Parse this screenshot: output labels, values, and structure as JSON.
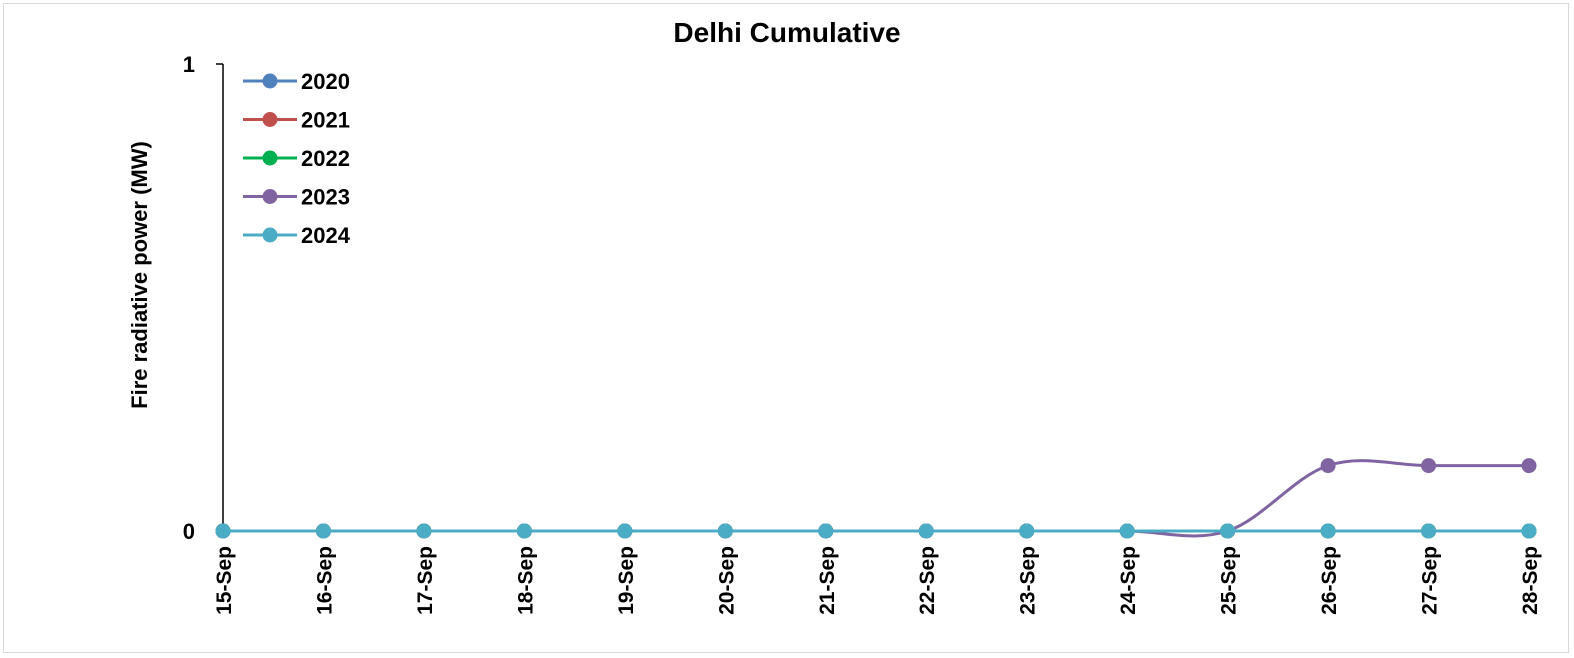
{
  "chart_data": {
    "type": "line",
    "title": "Delhi Cumulative",
    "xlabel": "",
    "ylabel": "Fire radiative power (MW)",
    "ylim": [
      0,
      1
    ],
    "yticks": [
      "0",
      "1"
    ],
    "categories": [
      "15-Sep",
      "16-Sep",
      "17-Sep",
      "18-Sep",
      "19-Sep",
      "20-Sep",
      "21-Sep",
      "22-Sep",
      "23-Sep",
      "24-Sep",
      "25-Sep",
      "26-Sep",
      "27-Sep",
      "28-Sep"
    ],
    "legend_position": "top-left",
    "grid": false,
    "series": [
      {
        "name": "2020",
        "color": "#4f81bd",
        "values": [
          0,
          0,
          0,
          0,
          0,
          0,
          0,
          0,
          0,
          0,
          0,
          0,
          0,
          0
        ]
      },
      {
        "name": "2021",
        "color": "#c0504d",
        "values": [
          0,
          0,
          0,
          0,
          0,
          0,
          0,
          0,
          0,
          0,
          0,
          0,
          0,
          0
        ]
      },
      {
        "name": "2022",
        "color": "#00b050",
        "values": [
          0,
          0,
          0,
          0,
          0,
          0,
          0,
          0,
          0,
          0,
          0,
          0,
          0,
          0
        ]
      },
      {
        "name": "2023",
        "color": "#8064a2",
        "values": [
          0,
          0,
          0,
          0,
          0,
          0,
          0,
          0,
          0,
          0,
          0,
          0.14,
          0.14,
          0.14
        ]
      },
      {
        "name": "2024",
        "color": "#4bacc6",
        "values": [
          0,
          0,
          0,
          0,
          0,
          0,
          0,
          0,
          0,
          0,
          0,
          0,
          0,
          0
        ]
      }
    ]
  }
}
